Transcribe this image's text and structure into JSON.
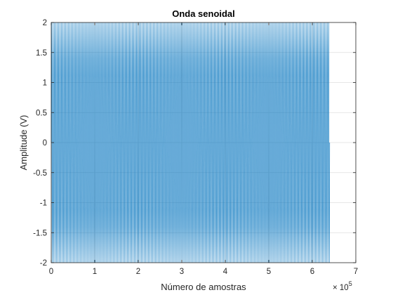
{
  "chart_data": {
    "type": "line",
    "title": "Onda senoidal",
    "xlabel": "Número de amostras",
    "ylabel": "Amplitude (V)",
    "x_exponent_label": "× 10",
    "x_exponent_power": "5",
    "xlim": [
      0,
      7
    ],
    "ylim": [
      -2,
      2
    ],
    "x_ticks": [
      "0",
      "1",
      "2",
      "3",
      "4",
      "5",
      "6",
      "7"
    ],
    "y_ticks": [
      "-2",
      "-1.5",
      "-1",
      "-0.5",
      "0",
      "0.5",
      "1",
      "1.5",
      "2"
    ],
    "grid": true,
    "series": [
      {
        "color": "#0072bd",
        "amplitude": 2,
        "x_start": 0,
        "x_end": 6.4,
        "cycles": 200
      }
    ]
  }
}
